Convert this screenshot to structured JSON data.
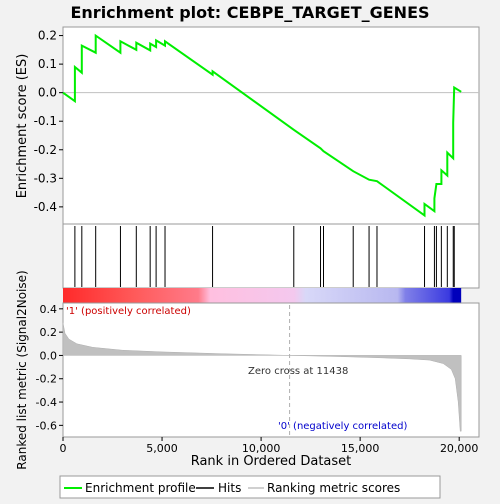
{
  "chart_data": {
    "type": "line",
    "title": "Enrichment plot: CEBPE_TARGET_GENES",
    "top_panel": {
      "ylabel": "Enrichment score (ES)",
      "ylim": [
        -0.46,
        0.23
      ],
      "yticks": [
        -0.4,
        -0.3,
        -0.2,
        -0.1,
        0.0,
        0.1,
        0.2
      ],
      "ytick_labels": [
        "-0.4",
        "-0.3",
        "-0.2",
        "-0.1",
        "0.0",
        "0.1",
        "0.2"
      ],
      "es_profile": [
        [
          0,
          0.0
        ],
        [
          600,
          -0.03
        ],
        [
          600,
          0.09
        ],
        [
          950,
          0.07
        ],
        [
          950,
          0.165
        ],
        [
          1650,
          0.14
        ],
        [
          1650,
          0.2
        ],
        [
          2900,
          0.14
        ],
        [
          2900,
          0.18
        ],
        [
          3700,
          0.15
        ],
        [
          3700,
          0.175
        ],
        [
          4400,
          0.148
        ],
        [
          4400,
          0.172
        ],
        [
          4700,
          0.16
        ],
        [
          4700,
          0.183
        ],
        [
          5150,
          0.165
        ],
        [
          5150,
          0.18
        ],
        [
          7550,
          0.063
        ],
        [
          7550,
          0.075
        ],
        [
          11650,
          -0.13
        ],
        [
          13000,
          -0.195
        ],
        [
          13150,
          -0.205
        ],
        [
          14650,
          -0.275
        ],
        [
          15450,
          -0.305
        ],
        [
          15850,
          -0.31
        ],
        [
          18250,
          -0.43
        ],
        [
          18250,
          -0.39
        ],
        [
          18750,
          -0.415
        ],
        [
          18750,
          -0.37
        ],
        [
          18850,
          -0.32
        ],
        [
          19100,
          -0.32
        ],
        [
          19100,
          -0.272
        ],
        [
          19400,
          -0.29
        ],
        [
          19400,
          -0.21
        ],
        [
          19700,
          -0.23
        ],
        [
          19700,
          -0.105
        ],
        [
          19750,
          0.018
        ],
        [
          20100,
          0.003
        ]
      ]
    },
    "hit_ranks": [
      600,
      950,
      1650,
      2900,
      3700,
      4400,
      4700,
      5150,
      7550,
      11650,
      13000,
      13150,
      14650,
      15450,
      15850,
      18250,
      18750,
      18850,
      19100,
      19400,
      19700,
      19750
    ],
    "bottom_panel": {
      "ylabel": "Ranked list metric (Signal2Noise)",
      "ylim": [
        -0.7,
        0.45
      ],
      "yticks": [
        -0.6,
        -0.4,
        -0.2,
        0.0,
        0.2,
        0.4
      ],
      "ytick_labels": [
        "-0.6",
        "-0.4",
        "-0.2",
        "0.0",
        "0.2",
        "0.4"
      ],
      "metric_curve": [
        [
          0,
          0.28
        ],
        [
          100,
          0.19
        ],
        [
          300,
          0.14
        ],
        [
          700,
          0.1
        ],
        [
          1500,
          0.07
        ],
        [
          3000,
          0.045
        ],
        [
          5000,
          0.03
        ],
        [
          8000,
          0.015
        ],
        [
          11438,
          0.0
        ],
        [
          14000,
          -0.01
        ],
        [
          16000,
          -0.02
        ],
        [
          17500,
          -0.03
        ],
        [
          18500,
          -0.04
        ],
        [
          19200,
          -0.07
        ],
        [
          19600,
          -0.12
        ],
        [
          19800,
          -0.2
        ],
        [
          19950,
          -0.4
        ],
        [
          20050,
          -0.65
        ],
        [
          20100,
          -0.65
        ]
      ],
      "zero_cross_label": "Zero cross at 11438",
      "zero_cross_rank": 11438,
      "positive_label": "'1' (positively correlated)",
      "negative_label": "'0' (negatively correlated)"
    },
    "x_axis": {
      "xlabel": "Rank in Ordered Dataset",
      "xlim": [
        0,
        21000
      ],
      "xticks": [
        0,
        5000,
        10000,
        15000,
        20000
      ],
      "xtick_labels": [
        "0",
        "5,000",
        "10,000",
        "15,000",
        "20,000"
      ],
      "n_genes": 20100
    },
    "legend": {
      "placement": "bottom",
      "entries": [
        {
          "label": "Enrichment profile",
          "color": "#00ee00"
        },
        {
          "label": "Hits",
          "color": "#000000"
        },
        {
          "label": "Ranking metric scores",
          "color": "#c0c0c0"
        }
      ]
    },
    "colors": {
      "es_line": "#00ee00",
      "hit": "#000000",
      "metric_fill": "#c0c0c0",
      "zero_line": "#c0c0c0",
      "positive_label": "#cc0000",
      "negative_label": "#0000cc"
    }
  }
}
